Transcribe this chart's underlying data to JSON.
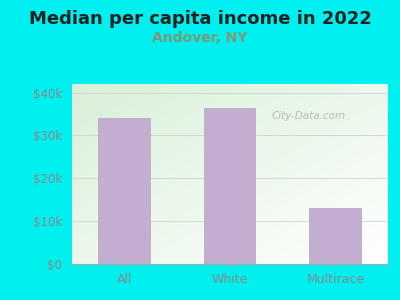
{
  "title": "Median per capita income in 2022",
  "subtitle": "Andover, NY",
  "categories": [
    "All",
    "White",
    "Multirace"
  ],
  "values": [
    34000,
    36500,
    13000
  ],
  "bar_color": "#c4aed0",
  "background_color": "#00efef",
  "title_fontsize": 13,
  "title_color": "#222222",
  "subtitle_fontsize": 10,
  "subtitle_color": "#7a9a7a",
  "tick_label_color": "#888888",
  "ylim": [
    0,
    42000
  ],
  "yticks": [
    0,
    10000,
    20000,
    30000,
    40000
  ],
  "ytick_labels": [
    "$0",
    "$10k",
    "$20k",
    "$30k",
    "$40k"
  ],
  "watermark": "City-Data.com",
  "plot_bg_top_left": "#d8edd8",
  "plot_bg_bottom_right": "#f8fff8"
}
